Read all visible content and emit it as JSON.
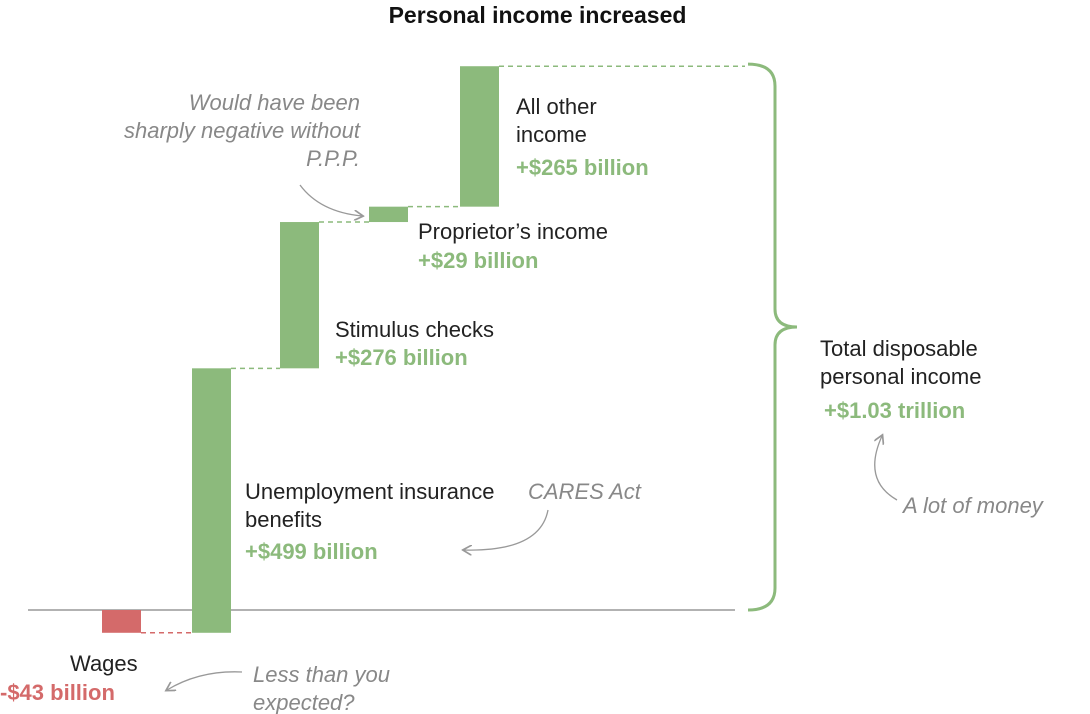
{
  "chart_data": {
    "type": "waterfall",
    "title": "Personal income increased",
    "categories": [
      "Wages",
      "Unemployment insurance benefits",
      "Stimulus checks",
      "Proprietor’s income",
      "All other income"
    ],
    "values": [
      -43,
      499,
      276,
      29,
      265
    ],
    "value_labels": [
      "-$43 billion",
      "+$499 billion",
      "+$276 billion",
      "+$29 billion",
      "+$265 billion"
    ],
    "positive_color": "#8cba7c",
    "negative_color": "#d46a6a",
    "total": {
      "label": "Total disposable personal income",
      "value": 1030,
      "value_label": "+$1.03 trillion"
    },
    "annotations": [
      "Less than you expected?",
      "CARES Act",
      "Would have been sharply negative without P.P.P.",
      "A lot of money"
    ]
  }
}
